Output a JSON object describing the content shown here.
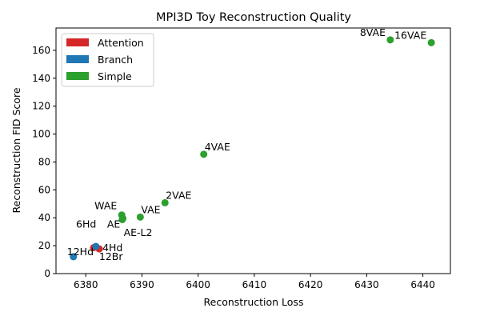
{
  "chart_data": {
    "type": "scatter",
    "title": "MPI3D Toy Reconstruction Quality",
    "xlabel": "Reconstruction Loss",
    "ylabel": "Reconstruction FID Score",
    "xlim": [
      6374.7,
      6444.9
    ],
    "ylim": [
      0,
      176
    ],
    "xticks": [
      "6380",
      "6390",
      "6400",
      "6410",
      "6420",
      "6430",
      "6440"
    ],
    "yticks": [
      "0",
      "20",
      "40",
      "60",
      "80",
      "100",
      "120",
      "140",
      "160"
    ],
    "grid": false,
    "legend_position": "top-left",
    "legend": [
      {
        "label": "Attention",
        "color": "#d62728"
      },
      {
        "label": "Branch",
        "color": "#1f77b4"
      },
      {
        "label": "Simple",
        "color": "#2ca02c"
      }
    ],
    "series": [
      {
        "name": "Attention",
        "color": "#d62728",
        "points": [
          {
            "x": 6381.4,
            "y": 18.6,
            "label": "6Hd"
          },
          {
            "x": 6382.4,
            "y": 17.7,
            "label": "4Hd"
          }
        ]
      },
      {
        "name": "Branch",
        "color": "#1f77b4",
        "points": [
          {
            "x": 6377.8,
            "y": 12.1,
            "label": "12Hd"
          },
          {
            "x": 6381.8,
            "y": 19.5,
            "label": "12Br"
          }
        ]
      },
      {
        "name": "Simple",
        "color": "#2ca02c",
        "points": [
          {
            "x": 6386.4,
            "y": 42.0,
            "label": "WAE"
          },
          {
            "x": 6386.5,
            "y": 38.7,
            "label": "AE"
          },
          {
            "x": 6386.6,
            "y": 39.5,
            "label": "AE-L2"
          },
          {
            "x": 6389.7,
            "y": 40.5,
            "label": "VAE"
          },
          {
            "x": 6394.1,
            "y": 50.8,
            "label": "2VAE"
          },
          {
            "x": 6401.0,
            "y": 85.5,
            "label": "4VAE"
          },
          {
            "x": 6434.2,
            "y": 167.5,
            "label": "8VAE"
          },
          {
            "x": 6441.5,
            "y": 165.5,
            "label": "16VAE"
          }
        ]
      }
    ]
  }
}
